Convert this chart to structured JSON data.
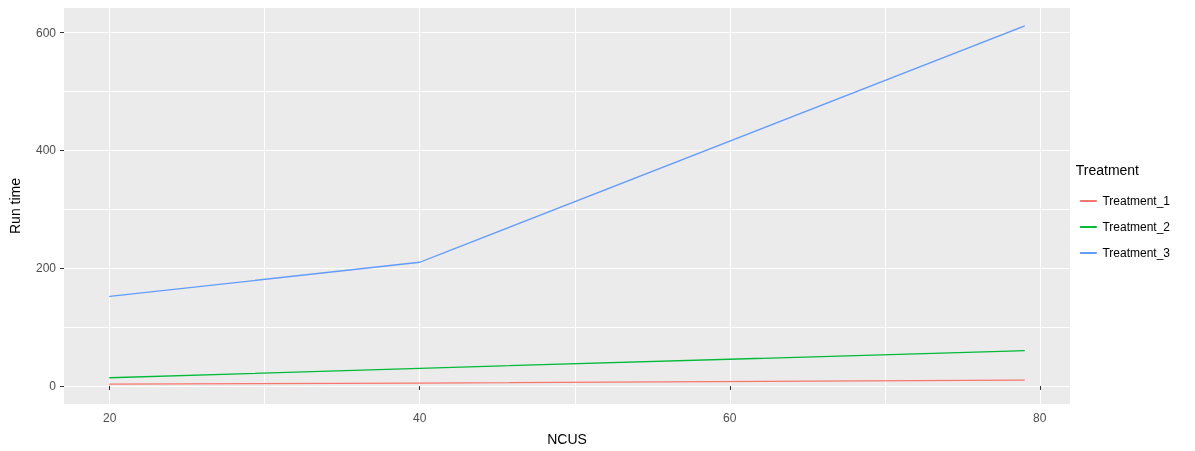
{
  "chart_data": {
    "type": "line",
    "xlabel": "NCUS",
    "ylabel": "Run time",
    "legend_title": "Treatment",
    "legend": "right",
    "x": [
      20,
      40,
      79
    ],
    "series": [
      {
        "name": "Treatment_1",
        "color": "#f8766d",
        "values": [
          3,
          5,
          10
        ]
      },
      {
        "name": "Treatment_2",
        "color": "#00ba38",
        "values": [
          14,
          30,
          60
        ]
      },
      {
        "name": "Treatment_3",
        "color": "#619cff",
        "values": [
          152,
          210,
          611
        ]
      }
    ],
    "xlim": [
      17.05,
      81.95
    ],
    "xticks": [
      20,
      {
        "value": 30,
        "label": null
      },
      40,
      {
        "value": 50,
        "label": null
      },
      60,
      {
        "value": 70,
        "label": null
      },
      80
    ],
    "ylim": [
      -30.6,
      641.6
    ],
    "yticks": [
      0,
      {
        "value": 100,
        "label": null
      },
      200,
      {
        "value": 300,
        "label": null
      },
      400,
      {
        "value": 500,
        "label": null
      },
      600
    ],
    "grid": true,
    "marker": "none",
    "line_style": "solid"
  }
}
